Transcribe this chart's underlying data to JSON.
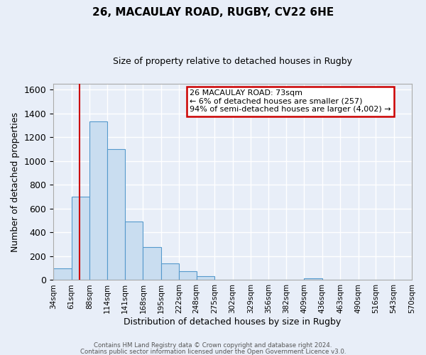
{
  "title": "26, MACAULAY ROAD, RUGBY, CV22 6HE",
  "subtitle": "Size of property relative to detached houses in Rugby",
  "xlabel": "Distribution of detached houses by size in Rugby",
  "ylabel": "Number of detached properties",
  "bar_color": "#c9ddf0",
  "bar_edge_color": "#5599cc",
  "background_color": "#e8eef8",
  "grid_color": "#ffffff",
  "bin_labels": [
    "34sqm",
    "61sqm",
    "88sqm",
    "114sqm",
    "141sqm",
    "168sqm",
    "195sqm",
    "222sqm",
    "248sqm",
    "275sqm",
    "302sqm",
    "329sqm",
    "356sqm",
    "382sqm",
    "409sqm",
    "436sqm",
    "463sqm",
    "490sqm",
    "516sqm",
    "543sqm",
    "570sqm"
  ],
  "bar_heights": [
    100,
    700,
    1330,
    1100,
    490,
    280,
    140,
    75,
    30,
    0,
    0,
    0,
    0,
    0,
    15,
    0,
    0,
    0,
    0,
    0
  ],
  "ylim": [
    0,
    1650
  ],
  "yticks": [
    0,
    200,
    400,
    600,
    800,
    1000,
    1200,
    1400,
    1600
  ],
  "property_line_x": 73,
  "bin_edges": [
    34,
    61,
    88,
    114,
    141,
    168,
    195,
    222,
    248,
    275,
    302,
    329,
    356,
    382,
    409,
    436,
    463,
    490,
    516,
    543,
    570
  ],
  "annotation_title": "26 MACAULAY ROAD: 73sqm",
  "annotation_line1": "← 6% of detached houses are smaller (257)",
  "annotation_line2": "94% of semi-detached houses are larger (4,002) →",
  "annotation_box_color": "#ffffff",
  "annotation_box_edge": "#cc0000",
  "red_line_color": "#cc0000",
  "footer1": "Contains HM Land Registry data © Crown copyright and database right 2024.",
  "footer2": "Contains public sector information licensed under the Open Government Licence v3.0."
}
